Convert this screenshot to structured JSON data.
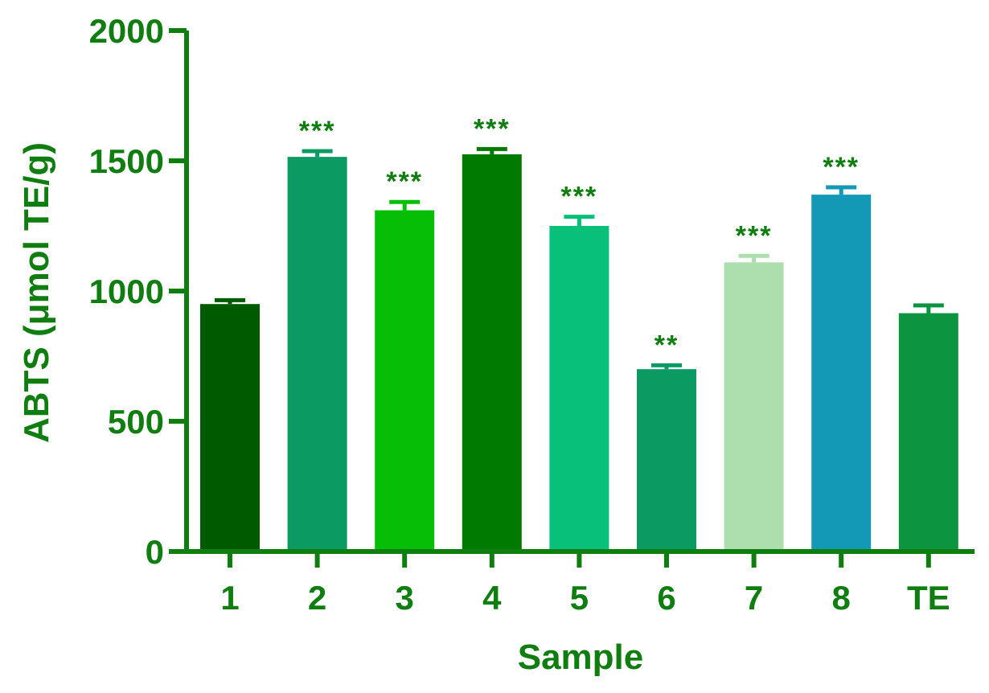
{
  "colors": {
    "axis": "#0f7d0f",
    "text": "#0f7d0f",
    "bars": [
      "#005a00",
      "#0a9a62",
      "#05be05",
      "#007a00",
      "#08c079",
      "#0a9a62",
      "#addeae",
      "#1398b6",
      "#0c9440"
    ]
  },
  "chart_data": {
    "type": "bar",
    "title": "",
    "xlabel": "Sample",
    "ylabel": "ABTS (μmol TE/g)",
    "ylim": [
      0,
      2000
    ],
    "yticks": [
      "0",
      "500",
      "1000",
      "1500",
      "2000"
    ],
    "ytick_values": [
      0,
      500,
      1000,
      1500,
      2000
    ],
    "categories": [
      "1",
      "2",
      "3",
      "4",
      "5",
      "6",
      "7",
      "8",
      "TE"
    ],
    "values": [
      950,
      1515,
      1310,
      1525,
      1250,
      700,
      1110,
      1370,
      915
    ],
    "errors": [
      15,
      22,
      32,
      20,
      35,
      15,
      25,
      28,
      30
    ],
    "annotations": [
      "",
      "***",
      "***",
      "***",
      "***",
      "**",
      "***",
      "***",
      ""
    ],
    "grid": false,
    "legend": "none"
  }
}
